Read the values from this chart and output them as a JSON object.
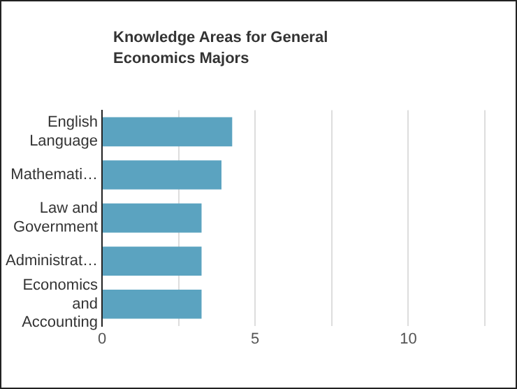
{
  "chart_data": {
    "type": "bar",
    "orientation": "horizontal",
    "title": "Knowledge Areas for General Economics Majors",
    "categories": [
      "English Language",
      "Mathemati…",
      "Law and Government",
      "Administrat…",
      "Economics and Accounting"
    ],
    "values": [
      4.25,
      3.9,
      3.25,
      3.25,
      3.25
    ],
    "color": "#5ba3c0",
    "xlim": [
      0,
      12.5
    ],
    "xticks": [
      0,
      {
        "value": 2.5,
        "label": null
      },
      5,
      {
        "value": 7.5,
        "label": null
      },
      10,
      {
        "value": 12.5,
        "label": null
      }
    ],
    "grid": "x",
    "legend": false
  }
}
